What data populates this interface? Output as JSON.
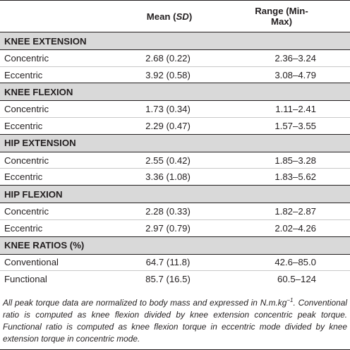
{
  "header": {
    "label_col": "",
    "mean_prefix": "Mean (",
    "mean_sd": "SD",
    "mean_suffix": ")",
    "range": "Range (Min-Max)"
  },
  "sections": [
    {
      "title": "KNEE EXTENSION",
      "rows": [
        {
          "label": "Concentric",
          "mean": "2.68 (0.22)",
          "range": "2.36–3.24"
        },
        {
          "label": "Eccentric",
          "mean": "3.92 (0.58)",
          "range": "3.08–4.79"
        }
      ]
    },
    {
      "title": "KNEE FLEXION",
      "rows": [
        {
          "label": "Concentric",
          "mean": "1.73 (0.34)",
          "range": "1.11–2.41"
        },
        {
          "label": "Eccentric",
          "mean": "2.29 (0.47)",
          "range": "1.57–3.55"
        }
      ]
    },
    {
      "title": "HIP EXTENSION",
      "rows": [
        {
          "label": "Concentric",
          "mean": "2.55 (0.42)",
          "range": "1.85–3.28"
        },
        {
          "label": "Eccentric",
          "mean": "3.36 (1.08)",
          "range": "1.83–5.62"
        }
      ]
    },
    {
      "title": "HIP FLEXION",
      "rows": [
        {
          "label": "Concentric",
          "mean": "2.28 (0.33)",
          "range": "1.82–2.87"
        },
        {
          "label": "Eccentric",
          "mean": "2.97 (0.79)",
          "range": "2.02–4.26"
        }
      ]
    },
    {
      "title": "KNEE RATIOS (%)",
      "rows": [
        {
          "label": "Conventional",
          "mean": "64.7 (11.8)",
          "range": "42.6–85.0"
        },
        {
          "label": "Functional",
          "mean": "85.7 (16.5)",
          "range": "60.5–124"
        }
      ]
    }
  ],
  "footnote": {
    "line_a": "All peak torque data are normalized to body mass and expressed in N.m.kg",
    "superscript": "−1",
    "line_b": ". Conventional ratio is computed as knee flexion divided by knee extension concentric peak torque. Functional ratio is computed as knee flexion torque in eccentric mode divided by knee extension torque in concentric mode."
  }
}
